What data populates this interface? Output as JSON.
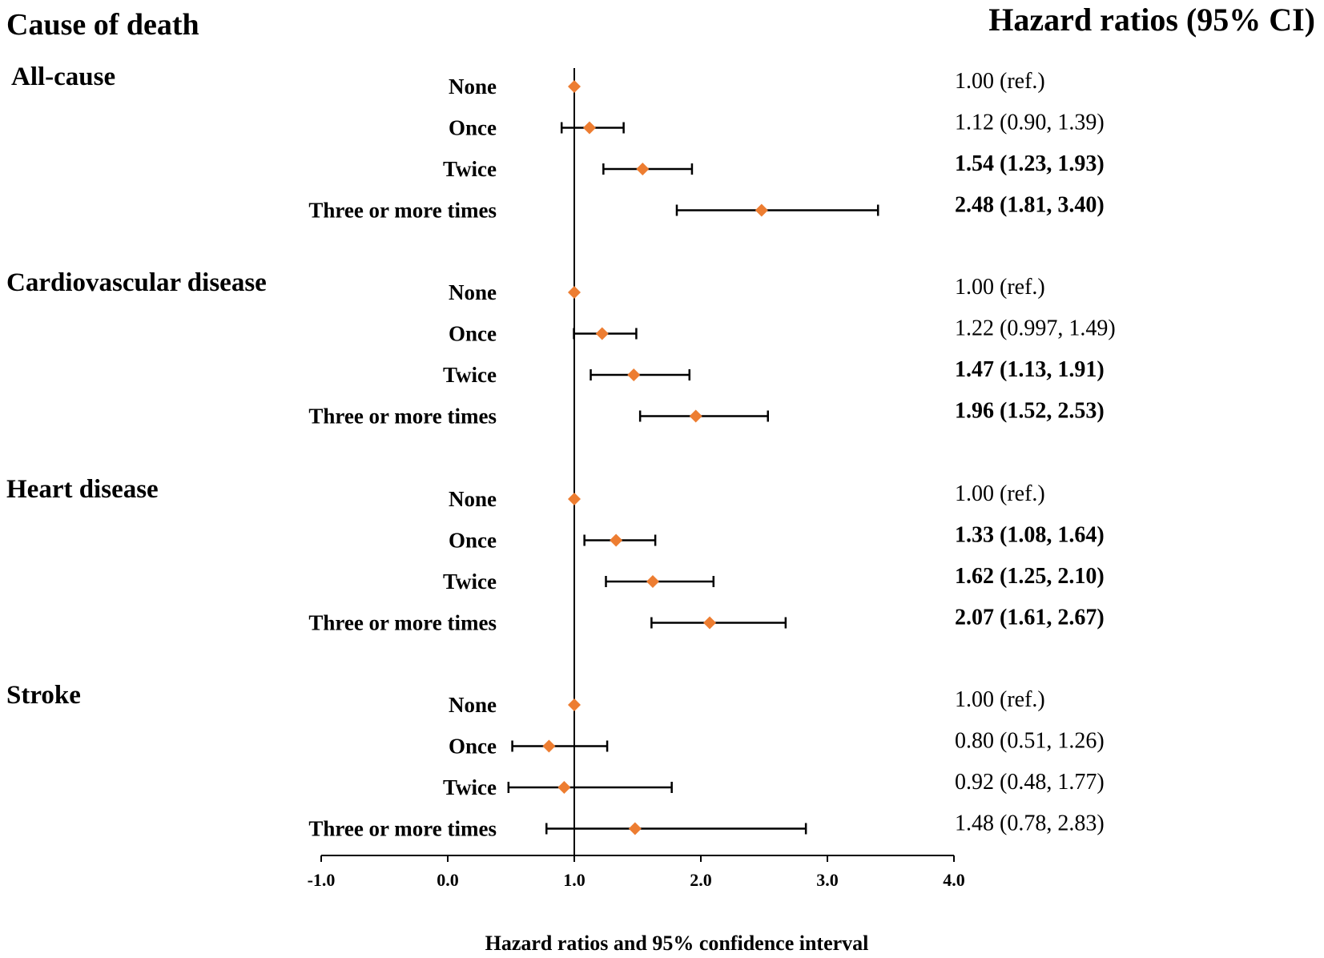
{
  "chart_data": {
    "type": "forest",
    "title_left": "Cause of death",
    "title_right": "Hazard ratios (95% CI)",
    "xlabel": "Hazard ratios and 95% confidence interval",
    "xlim": [
      -1.0,
      4.0
    ],
    "xticks": [
      -1.0,
      0.0,
      1.0,
      2.0,
      3.0,
      4.0
    ],
    "xtick_labels": [
      "-1.0",
      "0.0",
      "1.0",
      "2.0",
      "3.0",
      "4.0"
    ],
    "reference_line": 1.0,
    "marker_color": "#ED7D31",
    "line_color": "#000000",
    "groups": [
      {
        "label": "All-cause",
        "rows": [
          {
            "label": "None",
            "hr": 1.0,
            "lower": null,
            "upper": null,
            "text": "1.00 (ref.)",
            "significant": false
          },
          {
            "label": "Once",
            "hr": 1.12,
            "lower": 0.9,
            "upper": 1.39,
            "text": "1.12 (0.90, 1.39)",
            "significant": false
          },
          {
            "label": "Twice",
            "hr": 1.54,
            "lower": 1.23,
            "upper": 1.93,
            "text": "1.54 (1.23, 1.93)",
            "significant": true
          },
          {
            "label": "Three or more times",
            "hr": 2.48,
            "lower": 1.81,
            "upper": 3.4,
            "text": "2.48 (1.81, 3.40)",
            "significant": true
          }
        ]
      },
      {
        "label": "Cardiovascular disease",
        "rows": [
          {
            "label": "None",
            "hr": 1.0,
            "lower": null,
            "upper": null,
            "text": "1.00 (ref.)",
            "significant": false
          },
          {
            "label": "Once",
            "hr": 1.22,
            "lower": 0.997,
            "upper": 1.49,
            "text": "1.22 (0.997, 1.49)",
            "significant": false
          },
          {
            "label": "Twice",
            "hr": 1.47,
            "lower": 1.13,
            "upper": 1.91,
            "text": "1.47 (1.13, 1.91)",
            "significant": true
          },
          {
            "label": "Three or more times",
            "hr": 1.96,
            "lower": 1.52,
            "upper": 2.53,
            "text": "1.96 (1.52, 2.53)",
            "significant": true
          }
        ]
      },
      {
        "label": "Heart disease",
        "rows": [
          {
            "label": "None",
            "hr": 1.0,
            "lower": null,
            "upper": null,
            "text": "1.00 (ref.)",
            "significant": false
          },
          {
            "label": "Once",
            "hr": 1.33,
            "lower": 1.08,
            "upper": 1.64,
            "text": "1.33 (1.08, 1.64)",
            "significant": true
          },
          {
            "label": "Twice",
            "hr": 1.62,
            "lower": 1.25,
            "upper": 2.1,
            "text": "1.62 (1.25, 2.10)",
            "significant": true
          },
          {
            "label": "Three or more times",
            "hr": 2.07,
            "lower": 1.61,
            "upper": 2.67,
            "text": "2.07 (1.61, 2.67)",
            "significant": true
          }
        ]
      },
      {
        "label": "Stroke",
        "rows": [
          {
            "label": "None",
            "hr": 1.0,
            "lower": null,
            "upper": null,
            "text": "1.00 (ref.)",
            "significant": false
          },
          {
            "label": "Once",
            "hr": 0.8,
            "lower": 0.51,
            "upper": 1.26,
            "text": "0.80 (0.51, 1.26)",
            "significant": false
          },
          {
            "label": "Twice",
            "hr": 0.92,
            "lower": 0.48,
            "upper": 1.77,
            "text": "0.92 (0.48, 1.77)",
            "significant": false
          },
          {
            "label": "Three or more times",
            "hr": 1.48,
            "lower": 0.78,
            "upper": 2.83,
            "text": "1.48 (0.78, 2.83)",
            "significant": false
          }
        ]
      }
    ]
  }
}
